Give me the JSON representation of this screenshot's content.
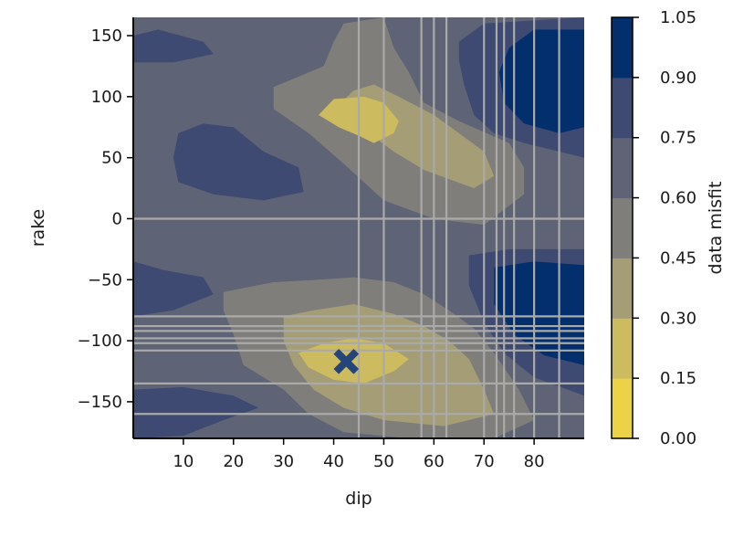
{
  "chart_data": {
    "type": "heatmap",
    "xlabel": "dip",
    "ylabel": "rake",
    "xlim": [
      0,
      90
    ],
    "ylim": [
      -180,
      165
    ],
    "xticks": [
      10,
      20,
      30,
      40,
      50,
      60,
      70,
      80
    ],
    "yticks": [
      150,
      100,
      50,
      0,
      -50,
      -100,
      -150
    ],
    "colorbar": {
      "label": "data misfit",
      "ticks": [
        "0.00",
        "0.15",
        "0.30",
        "0.45",
        "0.60",
        "0.75",
        "0.90",
        "1.05"
      ],
      "levels": [
        0.0,
        0.15,
        0.3,
        0.45,
        0.6,
        0.75,
        0.9,
        1.05
      ],
      "colors": [
        "#ecd247",
        "#cdbb5f",
        "#a59d76",
        "#7f7e7b",
        "#5e6375",
        "#3e4a72",
        "#03306d"
      ]
    },
    "grid_lines": {
      "x": [
        45,
        50,
        57.5,
        60,
        62.5,
        70,
        72.5,
        74,
        76,
        80,
        85
      ],
      "y": [
        0,
        -80,
        -88,
        -92,
        -98,
        -102,
        -108,
        -135,
        -160
      ],
      "color": "#aaaaaa"
    },
    "best_fit_marker": {
      "dip": 42.5,
      "rake": -117,
      "shape": "x",
      "color": "#25457a"
    },
    "regions": [
      {
        "name": "upper-left-low",
        "level": 0.75,
        "points": [
          [
            0,
            150
          ],
          [
            5,
            155
          ],
          [
            14,
            145
          ],
          [
            16,
            135
          ],
          [
            8,
            128
          ],
          [
            0,
            128
          ]
        ]
      },
      {
        "name": "upper-center-mid",
        "level": 0.45,
        "points": [
          [
            28,
            108
          ],
          [
            38,
            125
          ],
          [
            40,
            145
          ],
          [
            42,
            160
          ],
          [
            50,
            165
          ],
          [
            52,
            140
          ],
          [
            55,
            120
          ],
          [
            58,
            95
          ],
          [
            65,
            80
          ],
          [
            75,
            62
          ],
          [
            78,
            42
          ],
          [
            78,
            20
          ],
          [
            70,
            -5
          ],
          [
            60,
            0
          ],
          [
            50,
            15
          ],
          [
            42,
            45
          ],
          [
            35,
            70
          ],
          [
            28,
            90
          ]
        ]
      },
      {
        "name": "upper-center-low",
        "level": 0.3,
        "points": [
          [
            40,
            90
          ],
          [
            44,
            105
          ],
          [
            48,
            110
          ],
          [
            53,
            100
          ],
          [
            60,
            85
          ],
          [
            65,
            70
          ],
          [
            70,
            55
          ],
          [
            72,
            35
          ],
          [
            68,
            25
          ],
          [
            58,
            40
          ],
          [
            52,
            55
          ],
          [
            47,
            70
          ],
          [
            42,
            78
          ]
        ]
      },
      {
        "name": "upper-center-min",
        "level": 0.15,
        "points": [
          [
            37,
            85
          ],
          [
            40,
            98
          ],
          [
            46,
            100
          ],
          [
            50,
            95
          ],
          [
            53,
            80
          ],
          [
            52,
            70
          ],
          [
            48,
            62
          ],
          [
            45,
            68
          ],
          [
            41,
            75
          ]
        ]
      },
      {
        "name": "left-mid-blob",
        "level": 0.75,
        "points": [
          [
            9,
            70
          ],
          [
            14,
            78
          ],
          [
            20,
            75
          ],
          [
            26,
            55
          ],
          [
            33,
            42
          ],
          [
            34,
            22
          ],
          [
            26,
            15
          ],
          [
            16,
            20
          ],
          [
            9,
            30
          ],
          [
            8,
            50
          ]
        ]
      },
      {
        "name": "upper-right-mid",
        "level": 0.75,
        "points": [
          [
            65,
            145
          ],
          [
            70,
            160
          ],
          [
            90,
            165
          ],
          [
            90,
            50
          ],
          [
            85,
            55
          ],
          [
            78,
            62
          ],
          [
            72,
            70
          ],
          [
            68,
            85
          ],
          [
            66,
            110
          ],
          [
            65,
            130
          ]
        ]
      },
      {
        "name": "upper-right-dark",
        "level": 0.9,
        "points": [
          [
            75,
            140
          ],
          [
            80,
            155
          ],
          [
            90,
            155
          ],
          [
            90,
            75
          ],
          [
            85,
            70
          ],
          [
            78,
            78
          ],
          [
            74,
            95
          ],
          [
            73,
            120
          ]
        ]
      },
      {
        "name": "upper-right-deep",
        "level": 1.0,
        "points": [
          [
            88,
            120
          ],
          [
            90,
            125
          ],
          [
            90,
            80
          ],
          [
            88,
            85
          ],
          [
            87,
            100
          ]
        ]
      },
      {
        "name": "lower-left-low",
        "level": 0.75,
        "points": [
          [
            0,
            -35
          ],
          [
            6,
            -42
          ],
          [
            14,
            -48
          ],
          [
            16,
            -62
          ],
          [
            8,
            -75
          ],
          [
            0,
            -80
          ]
        ]
      },
      {
        "name": "lower-center-mid",
        "level": 0.45,
        "points": [
          [
            18,
            -60
          ],
          [
            28,
            -52
          ],
          [
            37,
            -50
          ],
          [
            44,
            -48
          ],
          [
            52,
            -52
          ],
          [
            58,
            -62
          ],
          [
            63,
            -75
          ],
          [
            68,
            -90
          ],
          [
            72,
            -110
          ],
          [
            77,
            -140
          ],
          [
            80,
            -165
          ],
          [
            72,
            -180
          ],
          [
            55,
            -180
          ],
          [
            42,
            -175
          ],
          [
            35,
            -160
          ],
          [
            30,
            -140
          ],
          [
            22,
            -120
          ],
          [
            20,
            -95
          ],
          [
            18,
            -75
          ]
        ]
      },
      {
        "name": "lower-center-low",
        "level": 0.3,
        "points": [
          [
            30,
            -80
          ],
          [
            36,
            -75
          ],
          [
            44,
            -70
          ],
          [
            52,
            -78
          ],
          [
            58,
            -88
          ],
          [
            63,
            -100
          ],
          [
            67,
            -115
          ],
          [
            70,
            -140
          ],
          [
            72,
            -160
          ],
          [
            62,
            -170
          ],
          [
            50,
            -165
          ],
          [
            42,
            -155
          ],
          [
            36,
            -140
          ],
          [
            32,
            -120
          ],
          [
            30,
            -100
          ]
        ]
      },
      {
        "name": "lower-center-min",
        "level": 0.15,
        "points": [
          [
            33,
            -110
          ],
          [
            38,
            -102
          ],
          [
            44,
            -98
          ],
          [
            50,
            -102
          ],
          [
            55,
            -115
          ],
          [
            52,
            -125
          ],
          [
            46,
            -135
          ],
          [
            40,
            -132
          ],
          [
            35,
            -122
          ]
        ]
      },
      {
        "name": "lower-left-mid2",
        "level": 0.75,
        "points": [
          [
            0,
            -140
          ],
          [
            10,
            -138
          ],
          [
            20,
            -145
          ],
          [
            25,
            -155
          ],
          [
            18,
            -165
          ],
          [
            10,
            -178
          ],
          [
            0,
            -180
          ]
        ]
      },
      {
        "name": "lower-right-mid",
        "level": 0.75,
        "points": [
          [
            67,
            -30
          ],
          [
            75,
            -25
          ],
          [
            90,
            -25
          ],
          [
            90,
            -145
          ],
          [
            80,
            -130
          ],
          [
            74,
            -110
          ],
          [
            70,
            -85
          ],
          [
            67,
            -55
          ]
        ]
      },
      {
        "name": "lower-right-dark",
        "level": 0.9,
        "points": [
          [
            72,
            -40
          ],
          [
            80,
            -35
          ],
          [
            90,
            -38
          ],
          [
            90,
            -120
          ],
          [
            82,
            -112
          ],
          [
            76,
            -95
          ],
          [
            72,
            -70
          ]
        ]
      },
      {
        "name": "lower-right-deep",
        "level": 1.0,
        "points": [
          [
            85,
            -75
          ],
          [
            88,
            -60
          ],
          [
            90,
            -55
          ],
          [
            90,
            -110
          ],
          [
            86,
            -100
          ],
          [
            84,
            -88
          ]
        ]
      }
    ]
  }
}
